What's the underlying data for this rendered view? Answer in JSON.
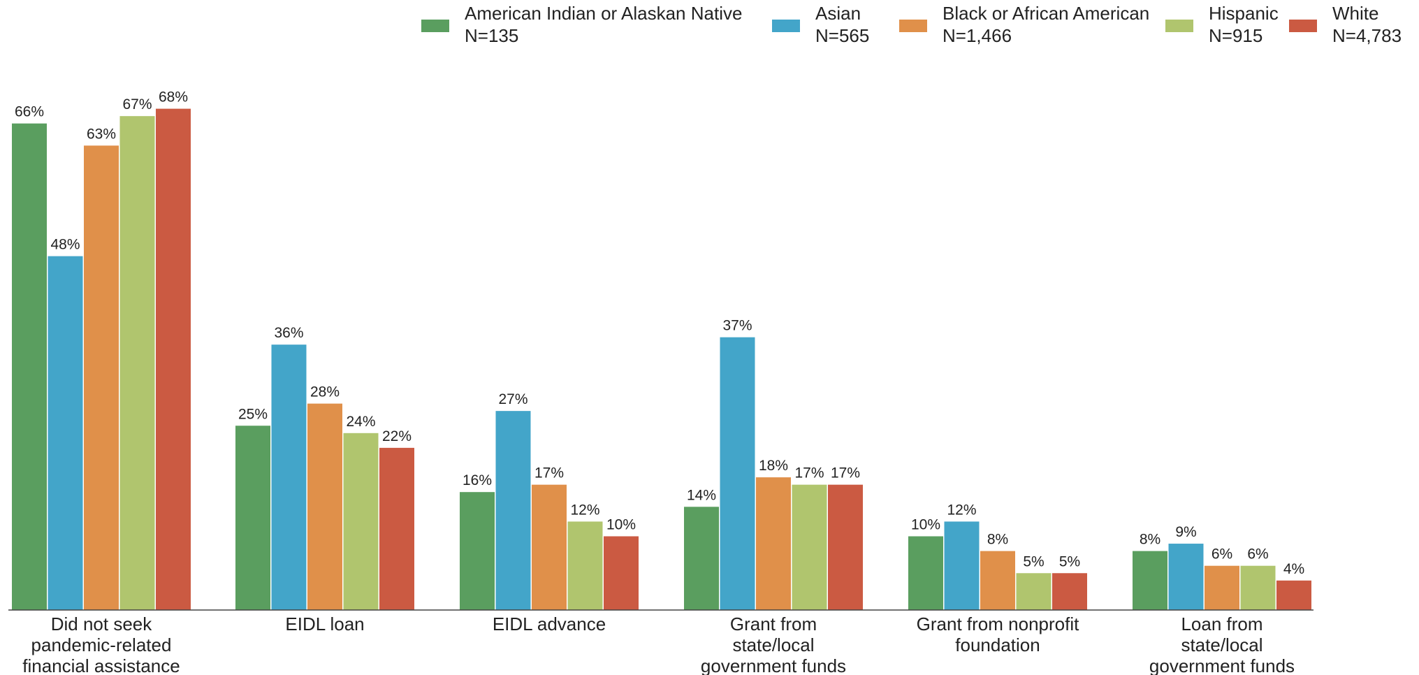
{
  "chart_data": {
    "type": "bar",
    "title": "",
    "xlabel": "",
    "ylabel": "",
    "ylim": [
      0,
      70
    ],
    "grid": false,
    "legend_position": "top",
    "categories": [
      [
        "Did not seek",
        "pandemic-related",
        "financial assistance"
      ],
      [
        "EIDL loan"
      ],
      [
        "EIDL advance"
      ],
      [
        "Grant from",
        "state/local",
        "government funds"
      ],
      [
        "Grant from nonprofit",
        "foundation"
      ],
      [
        "Loan from",
        "state/local",
        "government funds"
      ]
    ],
    "series": [
      {
        "name": "American Indian or Alaskan Native",
        "n_label": "N=135",
        "color": "#5a9e5f",
        "values": [
          66,
          25,
          16,
          14,
          10,
          8
        ]
      },
      {
        "name": "Asian",
        "n_label": "N=565",
        "color": "#43a5c9",
        "values": [
          48,
          36,
          27,
          37,
          12,
          9
        ]
      },
      {
        "name": "Black or African American",
        "n_label": "N=1,466",
        "color": "#e0904a",
        "values": [
          63,
          28,
          17,
          18,
          8,
          6
        ]
      },
      {
        "name": "Hispanic",
        "n_label": "N=915",
        "color": "#b0c56e",
        "values": [
          67,
          24,
          12,
          17,
          5,
          6
        ]
      },
      {
        "name": "White",
        "n_label": "N=4,783",
        "color": "#cb5a42",
        "values": [
          68,
          22,
          10,
          17,
          5,
          4
        ]
      }
    ],
    "value_suffix": "%"
  }
}
